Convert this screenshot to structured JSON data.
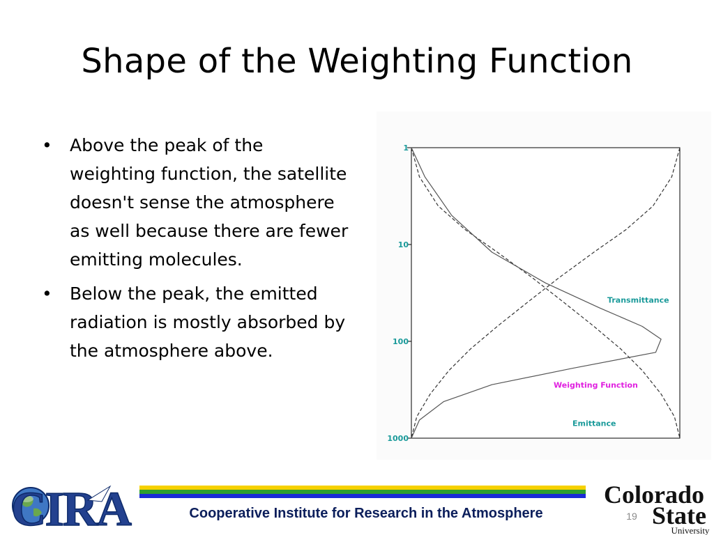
{
  "slide": {
    "title": "Shape of the Weighting Function",
    "bullets": [
      "Above the peak of the weighting function, the satellite doesn't sense the atmosphere as well because there are fewer emitting molecules.",
      "Below the peak, the emitted radiation is mostly absorbed by the atmosphere above."
    ],
    "page_number": "19"
  },
  "footer": {
    "caption": "Cooperative Institute for Research in the Atmosphere",
    "stripe_colors": [
      "#f6d100",
      "#2f9e2f",
      "#1a2ad6"
    ],
    "cira_logo": {
      "text": "CIRA",
      "icons": [
        "globe-icon",
        "comet-icon"
      ],
      "colors": {
        "text": "#23418f",
        "outline": "#0d2a6a"
      }
    },
    "csu_logo": {
      "line1": "Colorado",
      "line2": "State",
      "line3": "University",
      "color": "#111111"
    }
  },
  "chart_data": {
    "type": "line",
    "y_scale": "log",
    "y_inverted": true,
    "ylim": [
      1,
      1000
    ],
    "yticks": [
      "1",
      "10",
      "100",
      "1000"
    ],
    "tick_color": "#1a9a9a",
    "series": [
      {
        "name": "Transmittance",
        "label_color": "#1a9a9a",
        "style": "dashed",
        "x": [
          1.0,
          0.97,
          0.9,
          0.8,
          0.68,
          0.55,
          0.43,
          0.32,
          0.22,
          0.14,
          0.07,
          0.02,
          0.0
        ],
        "y": [
          1,
          2,
          4,
          7,
          12,
          22,
          40,
          70,
          120,
          200,
          350,
          600,
          1000
        ]
      },
      {
        "name": "Emittance",
        "label_color": "#1a9a9a",
        "style": "dashed",
        "x": [
          0.0,
          0.03,
          0.1,
          0.2,
          0.32,
          0.45,
          0.57,
          0.68,
          0.78,
          0.86,
          0.93,
          0.98,
          1.0
        ],
        "y": [
          1,
          2,
          4,
          7,
          12,
          22,
          40,
          70,
          120,
          200,
          350,
          600,
          1000
        ]
      },
      {
        "name": "Weighting Function",
        "label_color": "#e020e0",
        "style": "solid",
        "x": [
          0.0,
          0.05,
          0.15,
          0.3,
          0.5,
          0.7,
          0.86,
          0.93,
          0.91,
          0.6,
          0.3,
          0.12,
          0.03,
          0.0
        ],
        "y": [
          1,
          2,
          5,
          12,
          25,
          45,
          70,
          95,
          130,
          190,
          280,
          420,
          650,
          1000
        ]
      }
    ]
  }
}
